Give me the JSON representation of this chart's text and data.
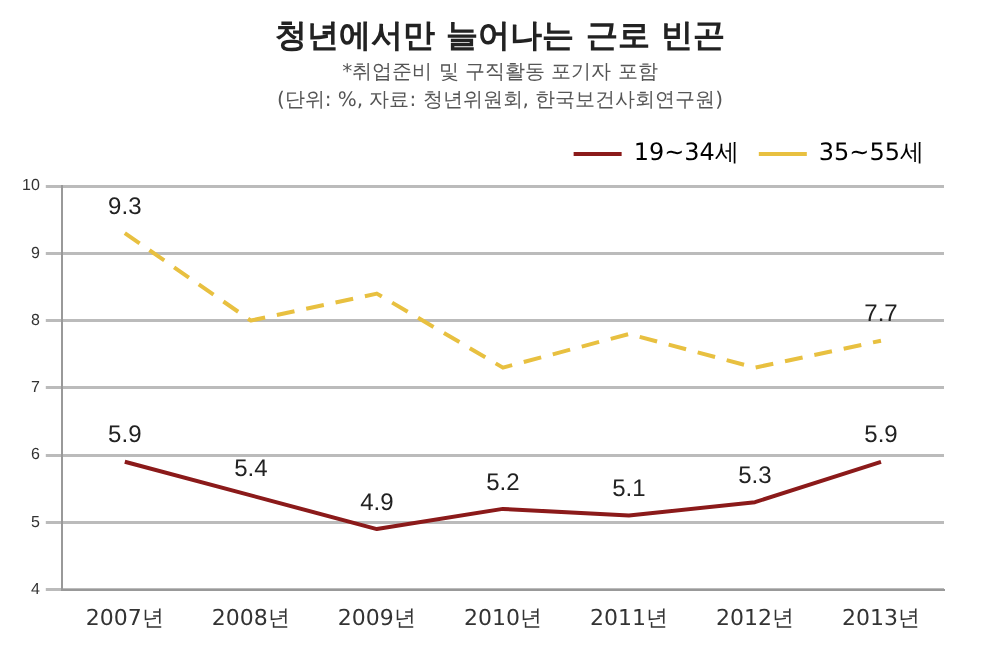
{
  "chart_data": {
    "type": "line",
    "title": "청년에서만 늘어나는 근로 빈곤",
    "subtitle": "*취업준비 및 구직활동 포기자 포함",
    "annotations": [
      "(단위: %, 자료: 청년위원회, 한국보건사회연구원)"
    ],
    "categories": [
      "2007년",
      "2008년",
      "2009년",
      "2010년",
      "2011년",
      "2012년",
      "2013년"
    ],
    "series": [
      {
        "name": "19~34세",
        "color": "#8b1a1a",
        "line_style": "solid",
        "values": [
          5.9,
          5.4,
          4.9,
          5.2,
          5.1,
          5.3,
          5.9
        ],
        "value_labels": [
          "5.9",
          "5.4",
          "4.9",
          "5.2",
          "5.1",
          "5.3",
          "5.9"
        ]
      },
      {
        "name": "35~55세",
        "color": "#e8c040",
        "line_style": "dashed",
        "values": [
          9.3,
          8.0,
          8.4,
          7.3,
          7.8,
          7.3,
          7.7
        ],
        "value_labels": [
          "9.3",
          null,
          null,
          null,
          null,
          null,
          "7.7"
        ]
      }
    ],
    "ylim": [
      4,
      10
    ],
    "yticks": [
      4,
      5,
      6,
      7,
      8,
      9,
      10
    ],
    "grid": "y",
    "legend": "top right",
    "marker": "none"
  }
}
